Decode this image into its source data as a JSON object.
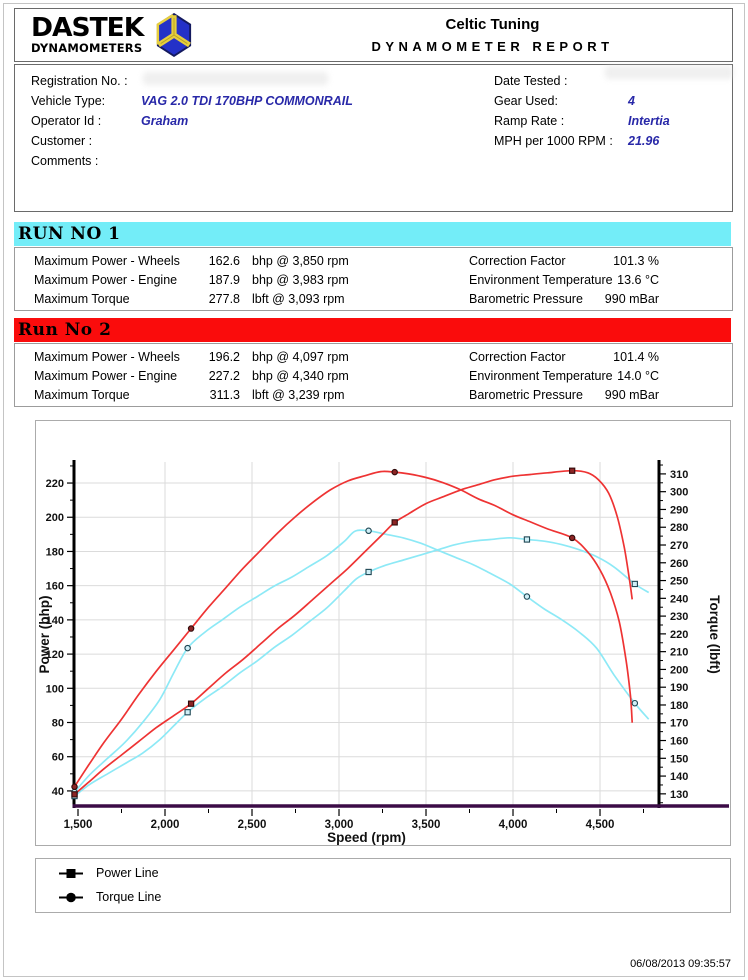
{
  "header": {
    "logo_line1": "DASTEK",
    "logo_line2": "DYNAMOMETERS",
    "company": "Celtic Tuning",
    "report_title": "DYNAMOMETER REPORT"
  },
  "icons": {
    "badge": "dastek-badge-icon",
    "legend_power_marker": "square-marker-icon",
    "legend_torque_marker": "circle-marker-icon"
  },
  "info": {
    "left": [
      {
        "label": "Registration No. :",
        "value": ""
      },
      {
        "label": "Vehicle Type:",
        "value": "VAG 2.0 TDI 170BHP COMMONRAIL"
      },
      {
        "label": "Operator Id :",
        "value": "Graham"
      },
      {
        "label": "Customer :",
        "value": ""
      },
      {
        "label": "Comments :",
        "value": ""
      }
    ],
    "right": [
      {
        "label": "Date Tested :",
        "value": ""
      },
      {
        "label": "Gear Used:",
        "value": "4"
      },
      {
        "label": "Ramp Rate :",
        "value": "Intertia"
      },
      {
        "label": "MPH per 1000 RPM :",
        "value": "21.96"
      }
    ]
  },
  "runs": [
    {
      "title": "RUN NO 1",
      "bar_color": "#73EDF8",
      "rows_left": [
        {
          "label": "Maximum Power - Wheels",
          "value": "162.6",
          "unit": "bhp @ 3,850 rpm"
        },
        {
          "label": "Maximum Power - Engine",
          "value": "187.9",
          "unit": "bhp @ 3,983 rpm"
        },
        {
          "label": "Maximum Torque",
          "value": "277.8",
          "unit": "lbft @ 3,093 rpm"
        }
      ],
      "rows_right": [
        {
          "label": "Correction Factor",
          "value": "101.3 %"
        },
        {
          "label": "Environment Temperature",
          "value": "13.6 °C"
        },
        {
          "label": "Barometric Pressure",
          "value": "990 mBar"
        }
      ]
    },
    {
      "title": "Run No 2",
      "bar_color": "#FA0C0C",
      "rows_left": [
        {
          "label": "Maximum Power - Wheels",
          "value": "196.2",
          "unit": "bhp @ 4,097 rpm"
        },
        {
          "label": "Maximum Power - Engine",
          "value": "227.2",
          "unit": "bhp @ 4,340 rpm"
        },
        {
          "label": "Maximum Torque",
          "value": "311.3",
          "unit": "lbft @ 3,239 rpm"
        }
      ],
      "rows_right": [
        {
          "label": "Correction Factor",
          "value": "101.4 %"
        },
        {
          "label": "Environment Temperature",
          "value": "14.0 °C"
        },
        {
          "label": "Barometric Pressure",
          "value": "990 mBar"
        }
      ]
    }
  ],
  "chart_data": {
    "type": "line",
    "title": "",
    "xlabel": "Speed (rpm)",
    "ylabel_left": "Power (bhp)",
    "ylabel_right": "Torque (lbft)",
    "x_range": [
      1477,
      4839
    ],
    "power_range": [
      30.6,
      232.3
    ],
    "torque_range": [
      122.6,
      316.7
    ],
    "x_ticks": [
      {
        "v": 1500,
        "label": "1,500"
      },
      {
        "v": 2000,
        "label": "2,000"
      },
      {
        "v": 2500,
        "label": "2,500"
      },
      {
        "v": 3000,
        "label": "3,000"
      },
      {
        "v": 3500,
        "label": "3,500"
      },
      {
        "v": 4000,
        "label": "4,000"
      },
      {
        "v": 4500,
        "label": "4,500"
      }
    ],
    "x_minor_step": 250,
    "power_ticks": [
      40,
      60,
      80,
      100,
      120,
      140,
      160,
      180,
      200,
      220
    ],
    "power_minor_step": 10,
    "torque_ticks": [
      130,
      140,
      150,
      160,
      170,
      180,
      190,
      200,
      210,
      220,
      230,
      240,
      250,
      260,
      270,
      280,
      290,
      300,
      310
    ],
    "torque_minor_step": 5,
    "grid_x": [
      2000,
      2500,
      3000,
      3500,
      4000,
      4500
    ],
    "grid_on": true,
    "grid_color": "#DBDBDB",
    "axis_color": "#000000",
    "baseline_color": "#3B0B46",
    "legend_position": "bottom-left-box",
    "series": [
      {
        "name": "Run 1 Power",
        "axis": "power",
        "marker": "square",
        "color": "#8DE9F6",
        "marker_fill": "#CFEFF7",
        "marker_stroke": "#1E4653",
        "points": [
          [
            1480,
            37
          ],
          [
            1570,
            44
          ],
          [
            1670,
            50
          ],
          [
            1770,
            56
          ],
          [
            1870,
            62
          ],
          [
            1970,
            70
          ],
          [
            2050,
            78
          ],
          [
            2130,
            86
          ],
          [
            2230,
            94
          ],
          [
            2330,
            101
          ],
          [
            2430,
            109
          ],
          [
            2530,
            116
          ],
          [
            2630,
            124
          ],
          [
            2730,
            131
          ],
          [
            2830,
            139
          ],
          [
            2930,
            147
          ],
          [
            3030,
            157
          ],
          [
            3100,
            164
          ],
          [
            3170,
            168
          ],
          [
            3270,
            172
          ],
          [
            3370,
            175
          ],
          [
            3470,
            178
          ],
          [
            3570,
            181
          ],
          [
            3670,
            184
          ],
          [
            3770,
            186
          ],
          [
            3870,
            187
          ],
          [
            3983,
            188
          ],
          [
            4080,
            187
          ],
          [
            4180,
            186
          ],
          [
            4280,
            184
          ],
          [
            4380,
            181
          ],
          [
            4480,
            177
          ],
          [
            4580,
            171
          ],
          [
            4700,
            161
          ],
          [
            4780,
            156
          ]
        ],
        "markers": [
          [
            1480,
            37
          ],
          [
            2130,
            86
          ],
          [
            3170,
            168
          ],
          [
            4080,
            187
          ],
          [
            4700,
            161
          ]
        ]
      },
      {
        "name": "Run 1 Torque",
        "axis": "torque",
        "marker": "circle",
        "color": "#8DE9F6",
        "marker_fill": "#CFEFF7",
        "marker_stroke": "#1E4653",
        "points": [
          [
            1480,
            131
          ],
          [
            1570,
            141
          ],
          [
            1670,
            150
          ],
          [
            1770,
            159
          ],
          [
            1870,
            170
          ],
          [
            1970,
            183
          ],
          [
            2050,
            198
          ],
          [
            2130,
            212
          ],
          [
            2230,
            221
          ],
          [
            2330,
            228
          ],
          [
            2430,
            235
          ],
          [
            2530,
            241
          ],
          [
            2630,
            247
          ],
          [
            2730,
            252
          ],
          [
            2830,
            258
          ],
          [
            2930,
            264
          ],
          [
            3030,
            272
          ],
          [
            3093,
            277.8
          ],
          [
            3170,
            278
          ],
          [
            3270,
            276
          ],
          [
            3370,
            274
          ],
          [
            3470,
            271
          ],
          [
            3570,
            267
          ],
          [
            3670,
            263
          ],
          [
            3770,
            259
          ],
          [
            3870,
            254
          ],
          [
            3983,
            248
          ],
          [
            4080,
            241
          ],
          [
            4180,
            234
          ],
          [
            4280,
            228
          ],
          [
            4380,
            221
          ],
          [
            4480,
            212
          ],
          [
            4580,
            197
          ],
          [
            4700,
            181
          ],
          [
            4780,
            172
          ]
        ],
        "markers": [
          [
            1480,
            131
          ],
          [
            2130,
            212
          ],
          [
            3170,
            278
          ],
          [
            4080,
            241
          ],
          [
            4700,
            181
          ]
        ]
      },
      {
        "name": "Run 2 Power",
        "axis": "power",
        "marker": "square",
        "color": "#EE3333",
        "marker_fill": "#8C2525",
        "marker_stroke": "#300A0A",
        "points": [
          [
            1480,
            38
          ],
          [
            1560,
            45
          ],
          [
            1650,
            53
          ],
          [
            1750,
            61
          ],
          [
            1850,
            69
          ],
          [
            1950,
            77
          ],
          [
            2050,
            84
          ],
          [
            2150,
            91
          ],
          [
            2250,
            100
          ],
          [
            2350,
            109
          ],
          [
            2450,
            117
          ],
          [
            2550,
            126
          ],
          [
            2650,
            135
          ],
          [
            2750,
            143
          ],
          [
            2850,
            152
          ],
          [
            2950,
            161
          ],
          [
            3050,
            170
          ],
          [
            3150,
            180
          ],
          [
            3250,
            190
          ],
          [
            3320,
            197
          ],
          [
            3400,
            202
          ],
          [
            3500,
            208
          ],
          [
            3600,
            212
          ],
          [
            3700,
            216
          ],
          [
            3800,
            219
          ],
          [
            3900,
            222
          ],
          [
            4000,
            224
          ],
          [
            4100,
            225
          ],
          [
            4200,
            226
          ],
          [
            4340,
            227.2
          ],
          [
            4430,
            226
          ],
          [
            4490,
            222
          ],
          [
            4550,
            214
          ],
          [
            4600,
            200
          ],
          [
            4640,
            182
          ],
          [
            4670,
            163
          ],
          [
            4685,
            152
          ]
        ],
        "markers": [
          [
            1480,
            38
          ],
          [
            2150,
            91
          ],
          [
            3320,
            197
          ],
          [
            4340,
            227.2
          ]
        ]
      },
      {
        "name": "Run 2 Torque",
        "axis": "torque",
        "marker": "circle",
        "color": "#EE3333",
        "marker_fill": "#8C2525",
        "marker_stroke": "#300A0A",
        "points": [
          [
            1480,
            134
          ],
          [
            1560,
            146
          ],
          [
            1650,
            159
          ],
          [
            1750,
            172
          ],
          [
            1850,
            186
          ],
          [
            1950,
            199
          ],
          [
            2050,
            211
          ],
          [
            2150,
            223
          ],
          [
            2250,
            235
          ],
          [
            2350,
            246
          ],
          [
            2450,
            257
          ],
          [
            2550,
            267
          ],
          [
            2650,
            277
          ],
          [
            2750,
            286
          ],
          [
            2850,
            294
          ],
          [
            2950,
            301
          ],
          [
            3050,
            306
          ],
          [
            3150,
            309
          ],
          [
            3239,
            311.3
          ],
          [
            3320,
            311
          ],
          [
            3400,
            310
          ],
          [
            3500,
            308
          ],
          [
            3600,
            305
          ],
          [
            3700,
            301
          ],
          [
            3800,
            296
          ],
          [
            3900,
            292
          ],
          [
            4000,
            287
          ],
          [
            4100,
            283
          ],
          [
            4200,
            279
          ],
          [
            4340,
            274
          ],
          [
            4430,
            266
          ],
          [
            4500,
            256
          ],
          [
            4560,
            243
          ],
          [
            4610,
            227
          ],
          [
            4650,
            205
          ],
          [
            4675,
            185
          ],
          [
            4685,
            170
          ]
        ],
        "markers": [
          [
            1480,
            134
          ],
          [
            2150,
            223
          ],
          [
            3320,
            311
          ],
          [
            4340,
            274
          ]
        ]
      }
    ]
  },
  "legend": [
    {
      "marker": "square",
      "label": "Power Line"
    },
    {
      "marker": "circle",
      "label": "Torque Line"
    }
  ],
  "footer": {
    "timestamp": "06/08/2013 09:35:57"
  }
}
